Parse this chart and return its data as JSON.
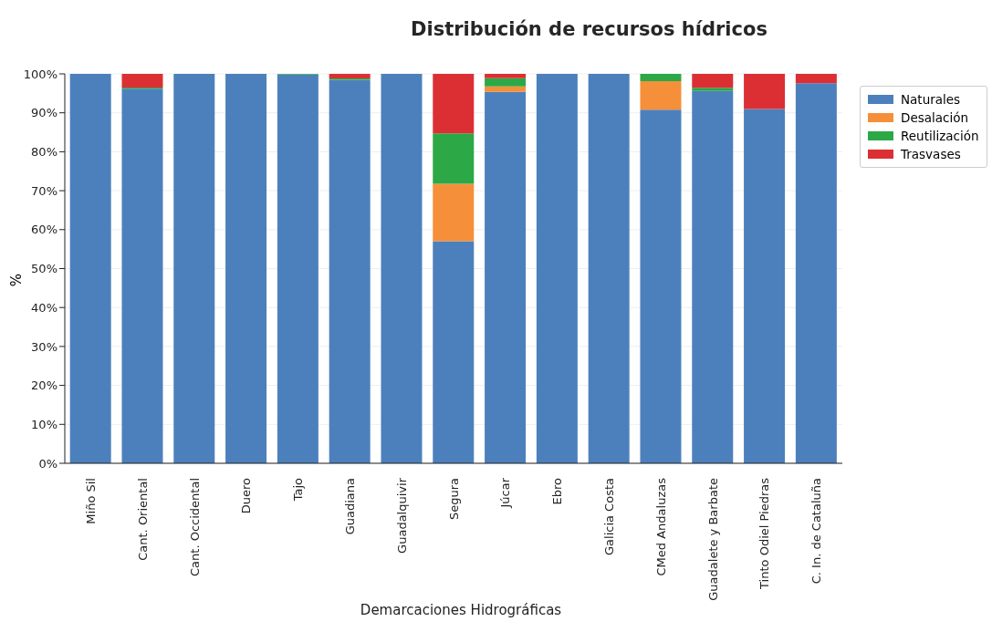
{
  "chart_data": {
    "type": "bar",
    "stacked": true,
    "title": "Distribución de recursos hídricos",
    "xlabel": "Demarcaciones Hidrográficas",
    "ylabel": "%",
    "categories": [
      "Miño Sil",
      "Cant. Oriental",
      "Cant. Occidental",
      "Duero",
      "Tajo",
      "Guadiana",
      "Guadalquivir",
      "Segura",
      "Júcar",
      "Ebro",
      "Galicia Costa",
      "CMed Andaluzas",
      "Guadalete y Barbate",
      "Tinto Odiel Piedras",
      "C. In. de Cataluña"
    ],
    "series": [
      {
        "name": "Naturales",
        "color": "#4c80bc",
        "values": [
          100,
          96.2,
          100,
          100,
          99.8,
          98.5,
          100,
          57,
          95.4,
          100,
          100,
          90.8,
          95.6,
          91,
          97.6
        ]
      },
      {
        "name": "Desalación",
        "color": "#f58f3a",
        "values": [
          0,
          0,
          0,
          0,
          0,
          0,
          0,
          14.8,
          1.4,
          0,
          0,
          7.3,
          0,
          0,
          0
        ]
      },
      {
        "name": "Reutilización",
        "color": "#2ca847",
        "values": [
          0,
          0.3,
          0,
          0,
          0.2,
          0.3,
          0,
          12.9,
          2.1,
          0,
          0,
          1.9,
          0.8,
          0,
          0
        ]
      },
      {
        "name": "Trasvases",
        "color": "#dc2f34",
        "values": [
          0,
          3.6,
          0,
          0,
          0,
          1.3,
          0,
          15.3,
          1.1,
          0,
          0,
          0,
          3.6,
          9,
          2.4
        ]
      }
    ],
    "ylim": [
      0,
      100
    ],
    "yticks": [
      {
        "value": 0,
        "label": "0%"
      },
      {
        "value": 10,
        "label": "10%"
      },
      {
        "value": 20,
        "label": "20%"
      },
      {
        "value": 30,
        "label": "30%"
      },
      {
        "value": 40,
        "label": "40%"
      },
      {
        "value": 50,
        "label": "50%"
      },
      {
        "value": 60,
        "label": "60%"
      },
      {
        "value": 70,
        "label": "70%"
      },
      {
        "value": 80,
        "label": "80%"
      },
      {
        "value": 90,
        "label": "90%"
      },
      {
        "value": 100,
        "label": "100%"
      }
    ],
    "grid": "y",
    "legend": "top right"
  }
}
